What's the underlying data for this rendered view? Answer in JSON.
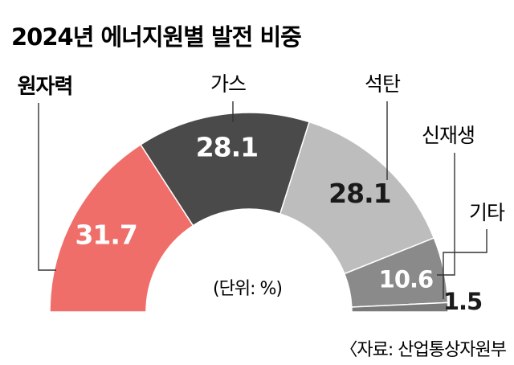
{
  "chart_data": {
    "type": "pie",
    "title": "2024년 에너지원별 발전 비중",
    "unit_label": "(단위: %)",
    "source": "〈자료: 산업통상자원부",
    "categories": [
      "원자력",
      "가스",
      "석탄",
      "신재생",
      "기타"
    ],
    "values": [
      31.7,
      28.1,
      28.1,
      10.6,
      1.5
    ],
    "value_labels": [
      "31.7",
      "28.1",
      "28.1",
      "10.6",
      "1.5"
    ],
    "colors": [
      "#f06e6a",
      "#4a4a4a",
      "#bdbdbd",
      "#8a8a8a",
      "#7a7a7a"
    ],
    "label_colors": [
      "#ffffff",
      "#ffffff",
      "#1a1a1a",
      "#ffffff",
      "#1a1a1a"
    ],
    "style": "semicircle-donut",
    "total": 100
  }
}
